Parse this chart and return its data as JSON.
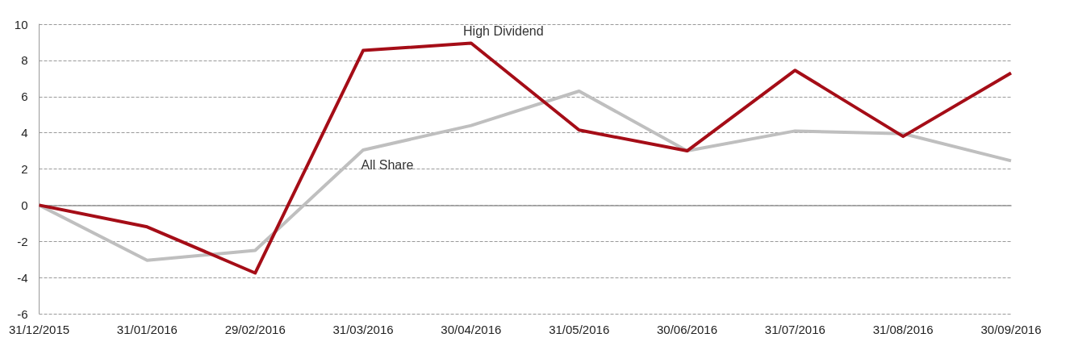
{
  "chart_data": {
    "type": "line",
    "categories": [
      "31/12/2015",
      "31/01/2016",
      "29/02/2016",
      "31/03/2016",
      "30/04/2016",
      "31/05/2016",
      "30/06/2016",
      "31/07/2016",
      "31/08/2016",
      "30/09/2016"
    ],
    "series": [
      {
        "name": "High Dividend",
        "color": "#a50d17",
        "values": [
          0,
          -1.2,
          -3.75,
          8.55,
          8.95,
          4.15,
          3.0,
          7.45,
          3.8,
          7.3
        ]
      },
      {
        "name": "All Share",
        "color": "#bfbfbf",
        "values": [
          0,
          -3.05,
          -2.5,
          3.05,
          4.4,
          6.3,
          3.0,
          4.1,
          3.95,
          2.45
        ]
      }
    ],
    "ylim": [
      -6,
      10
    ],
    "yticks": [
      -6,
      -4,
      -2,
      0,
      2,
      4,
      6,
      8,
      10
    ],
    "grid": "y",
    "legend": false,
    "marker": "none",
    "line_style": "solid"
  }
}
